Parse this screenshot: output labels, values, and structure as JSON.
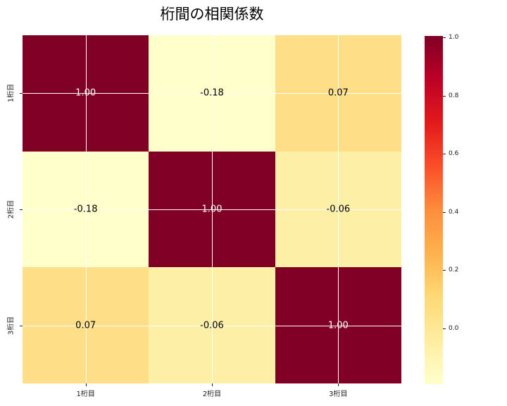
{
  "figure": {
    "background": "#FFFFFF"
  },
  "chart_data": {
    "type": "heatmap",
    "title": "桁間の相関係数",
    "x_categories": [
      "1桁目",
      "2桁目",
      "3桁目"
    ],
    "y_categories": [
      "1桁目",
      "2桁目",
      "3桁目"
    ],
    "matrix": [
      [
        1.0,
        -0.18,
        0.07
      ],
      [
        -0.18,
        1.0,
        -0.06
      ],
      [
        0.07,
        -0.06,
        1.0
      ]
    ],
    "cell_labels": [
      [
        "1.00",
        "-0.18",
        "0.07"
      ],
      [
        "-0.18",
        "1.00",
        "-0.06"
      ],
      [
        "0.07",
        "-0.06",
        "1.00"
      ]
    ],
    "cell_colors": [
      [
        "#800026",
        "#FFFFCC",
        "#FEDE87"
      ],
      [
        "#FFFFCC",
        "#800026",
        "#FDEFA6"
      ],
      [
        "#FEDE87",
        "#FDEFA6",
        "#800026"
      ]
    ],
    "cell_text_colors": [
      [
        "#FFFFFF",
        "#000000",
        "#000000"
      ],
      [
        "#000000",
        "#FFFFFF",
        "#000000"
      ],
      [
        "#000000",
        "#000000",
        "#FFFFFF"
      ]
    ],
    "colormap": {
      "name": "YlOrRd",
      "stops": [
        "#FFFFCC",
        "#FFEDA0",
        "#FED976",
        "#FEB24C",
        "#FD8D3C",
        "#FC4E2A",
        "#E31A1C",
        "#BD0026",
        "#800026"
      ]
    },
    "vmin": -0.18,
    "vmax": 1.0,
    "grid": true,
    "gridline_color": "#FFFFFF",
    "legend_position": "right-colorbar",
    "colorbar_ticks": [
      {
        "label": "1.0",
        "value": 1.0
      },
      {
        "label": "0.8",
        "value": 0.8
      },
      {
        "label": "0.6",
        "value": 0.6
      },
      {
        "label": "0.4",
        "value": 0.4
      },
      {
        "label": "0.2",
        "value": 0.2
      },
      {
        "label": "0.0",
        "value": 0.0
      }
    ]
  }
}
